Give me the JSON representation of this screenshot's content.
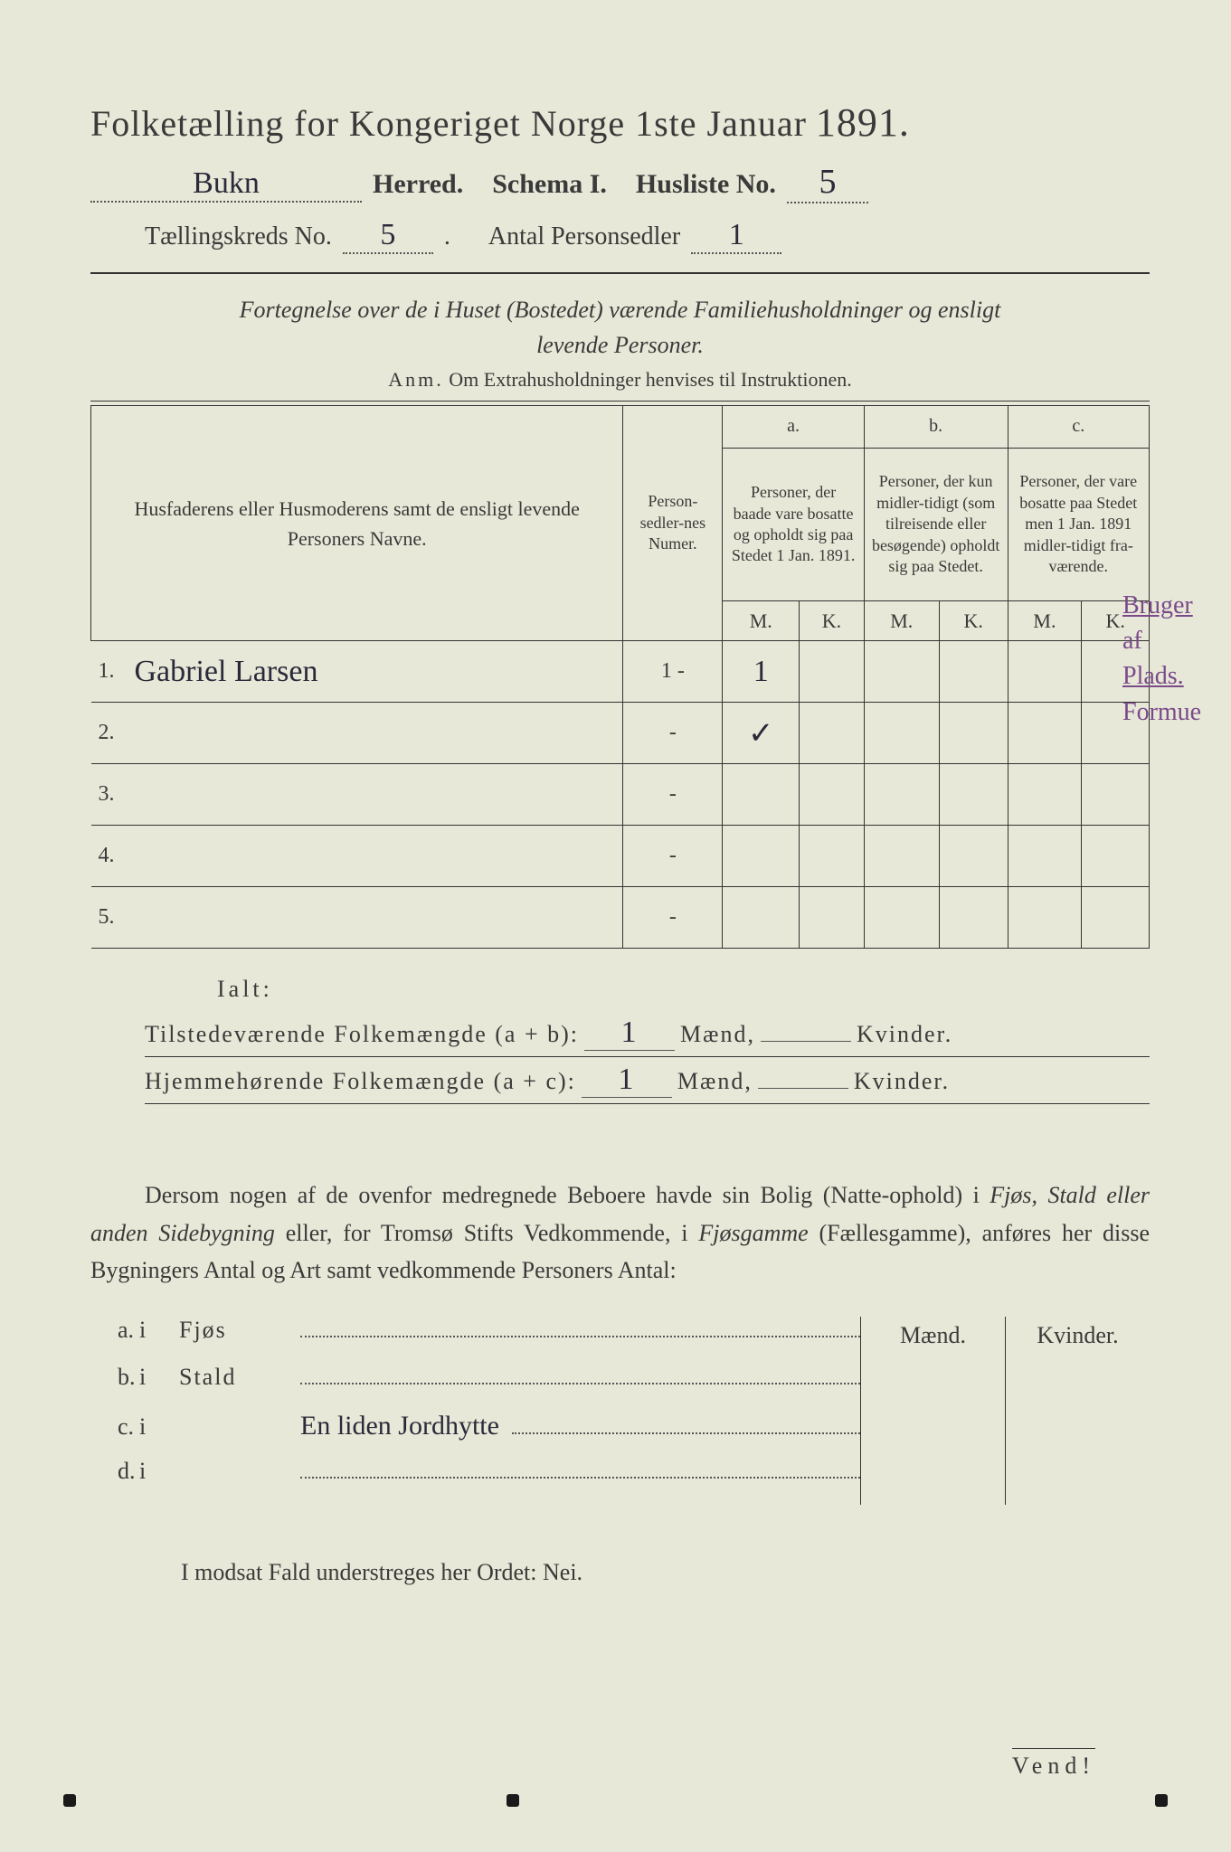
{
  "header": {
    "title_prefix": "Folketælling for Kongeriget Norge 1ste Januar",
    "year": "1891.",
    "herred_handwritten": "Bukn",
    "herred_label": "Herred.",
    "schema_label": "Schema I.",
    "husliste_label": "Husliste No.",
    "husliste_no": "5",
    "kreds_label": "Tællingskreds No.",
    "kreds_no": "5",
    "antal_label": "Antal Personsedler",
    "antal_no": "1"
  },
  "subtitle": {
    "line1": "Fortegnelse over de i Huset (Bostedet) værende Familiehusholdninger og ensligt",
    "line2": "levende Personer.",
    "anm_label": "Anm.",
    "anm_text": "Om Extrahusholdninger henvises til Instruktionen."
  },
  "table": {
    "col_names": "Husfaderens eller Husmoderens samt de ensligt levende Personers Navne.",
    "col_numer": "Person-sedler-nes Numer.",
    "col_a_letter": "a.",
    "col_a": "Personer, der baade vare bosatte og opholdt sig paa Stedet 1 Jan. 1891.",
    "col_b_letter": "b.",
    "col_b": "Personer, der kun midler-tidigt (som tilreisende eller besøgende) opholdt sig paa Stedet.",
    "col_c_letter": "c.",
    "col_c": "Personer, der vare bosatte paa Stedet men 1 Jan. 1891 midler-tidigt fra-værende.",
    "M": "M.",
    "K": "K.",
    "rows": [
      {
        "n": "1.",
        "name": "Gabriel Larsen",
        "numer": "1 -",
        "aM": "1",
        "aK": "",
        "bM": "",
        "bK": "",
        "cM": "",
        "cK": ""
      },
      {
        "n": "2.",
        "name": "",
        "numer": "-",
        "aM": "✓",
        "aK": "",
        "bM": "",
        "bK": "",
        "cM": "",
        "cK": ""
      },
      {
        "n": "3.",
        "name": "",
        "numer": "-",
        "aM": "",
        "aK": "",
        "bM": "",
        "bK": "",
        "cM": "",
        "cK": ""
      },
      {
        "n": "4.",
        "name": "",
        "numer": "-",
        "aM": "",
        "aK": "",
        "bM": "",
        "bK": "",
        "cM": "",
        "cK": ""
      },
      {
        "n": "5.",
        "name": "",
        "numer": "-",
        "aM": "",
        "aK": "",
        "bM": "",
        "bK": "",
        "cM": "",
        "cK": ""
      }
    ]
  },
  "margin_note": {
    "l1": "Bruger",
    "l2": "af",
    "l3": "Plads.",
    "l4": "Formue"
  },
  "totals": {
    "ialt": "Ialt:",
    "tilstede_label": "Tilstedeværende Folkemængde (a + b):",
    "tilstede_m": "1",
    "hjemme_label": "Hjemmehørende Folkemængde (a + c):",
    "hjemme_m": "1",
    "maend": "Mænd,",
    "kvinder": "Kvinder."
  },
  "paragraph": {
    "text_1": "Dersom nogen af de ovenfor medregnede Beboere havde sin Bolig (Natte-ophold) i ",
    "em_1": "Fjøs, Stald eller anden Sidebygning",
    "text_2": " eller, for Tromsø Stifts Vedkommende, i ",
    "em_2": "Fjøsgamme",
    "text_3": " (Fællesgamme), anføres her disse Bygningers Antal og Art samt vedkommende Personers Antal:"
  },
  "bygninger": {
    "maend": "Mænd.",
    "kvinder": "Kvinder.",
    "rows": [
      {
        "lbl": "a.",
        "i": "i",
        "type": "Fjøs",
        "hand": ""
      },
      {
        "lbl": "b.",
        "i": "i",
        "type": "Stald",
        "hand": ""
      },
      {
        "lbl": "c.",
        "i": "i",
        "type": "",
        "hand": "En liden Jordhytte"
      },
      {
        "lbl": "d.",
        "i": "i",
        "type": "",
        "hand": ""
      }
    ]
  },
  "footer": {
    "modsat": "I modsat Fald understreges her Ordet: Nei.",
    "vend": "Vend!"
  },
  "colors": {
    "paper": "#e8e8d8",
    "ink": "#3a3a3a",
    "handwriting": "#2a2a3a",
    "purple_ink": "#7a4a8a"
  }
}
